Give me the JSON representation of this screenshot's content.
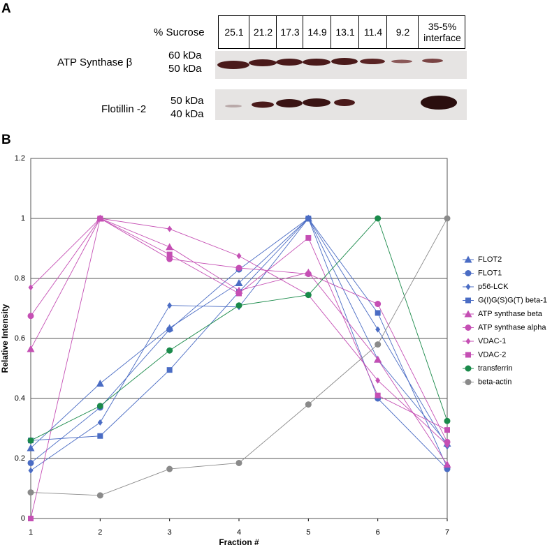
{
  "blot": {
    "panel_label": "A",
    "header_label": "% Sucrose",
    "columns": [
      "25.1",
      "21.2",
      "17.3",
      "14.9",
      "13.1",
      "11.4",
      "9.2",
      "35-5% interface"
    ],
    "rows": [
      {
        "label": "ATP  Synthase  β",
        "markers": [
          "60 kDa",
          "50 kDa"
        ]
      },
      {
        "label": "Flotillin -2",
        "markers": [
          "50 kDa",
          "40 kDa"
        ]
      }
    ]
  },
  "chart_data": {
    "type": "line",
    "panel_label": "B",
    "x_label": "Fraction #",
    "y_label": "Relative Intensity",
    "x": [
      1,
      2,
      3,
      4,
      5,
      6,
      7
    ],
    "xlim": [
      1,
      7
    ],
    "xticks": [
      1,
      2,
      3,
      4,
      5,
      6,
      7
    ],
    "ylim": [
      0,
      1.2
    ],
    "yticks": [
      0,
      0.2,
      0.4,
      0.6,
      0.8,
      1,
      1.2
    ],
    "grid": true,
    "legend": "right",
    "series": [
      {
        "name": "FLOT2",
        "color": "#4a6cc4",
        "marker": "triangle",
        "values": [
          0.235,
          0.45,
          0.635,
          0.785,
          1,
          0.53,
          0.25
        ]
      },
      {
        "name": "FLOT1",
        "color": "#4a6cc4",
        "marker": "circle",
        "values": [
          0.185,
          0.37,
          0.63,
          0.83,
          1,
          0.4,
          0.165
        ]
      },
      {
        "name": "p56-LCK",
        "color": "#4a6cc4",
        "marker": "diamond",
        "values": [
          0.16,
          0.32,
          0.71,
          0.705,
          1,
          0.63,
          0.24
        ]
      },
      {
        "name": "G(I)G(S)G(T) beta-1",
        "color": "#4a6cc4",
        "marker": "square",
        "values": [
          0.26,
          0.275,
          0.495,
          0.755,
          1,
          0.685,
          0.17
        ]
      },
      {
        "name": "ATP synthase beta",
        "color": "#c54fb4",
        "marker": "triangle",
        "values": [
          0.565,
          1,
          0.905,
          0.76,
          0.82,
          0.53,
          0.18
        ]
      },
      {
        "name": "ATP synthase alpha",
        "color": "#c54fb4",
        "marker": "circle",
        "values": [
          0.675,
          1,
          0.865,
          0.835,
          0.815,
          0.715,
          0.255
        ]
      },
      {
        "name": "VDAC-1",
        "color": "#c54fb4",
        "marker": "diamond",
        "values": [
          0.77,
          1,
          0.965,
          0.875,
          0.745,
          0.46,
          0.245
        ]
      },
      {
        "name": "VDAC-2",
        "color": "#c54fb4",
        "marker": "square",
        "values": [
          0,
          1,
          0.88,
          0.75,
          0.935,
          0.41,
          0.295
        ]
      },
      {
        "name": "transferrin",
        "color": "#1a8a4a",
        "marker": "circle",
        "values": [
          0.26,
          0.375,
          0.56,
          0.71,
          0.745,
          1,
          0.325
        ]
      },
      {
        "name": "beta-actin",
        "color": "#8a8a8a",
        "marker": "circle",
        "values": [
          0.087,
          0.077,
          0.165,
          0.185,
          0.38,
          0.58,
          1
        ]
      }
    ]
  }
}
